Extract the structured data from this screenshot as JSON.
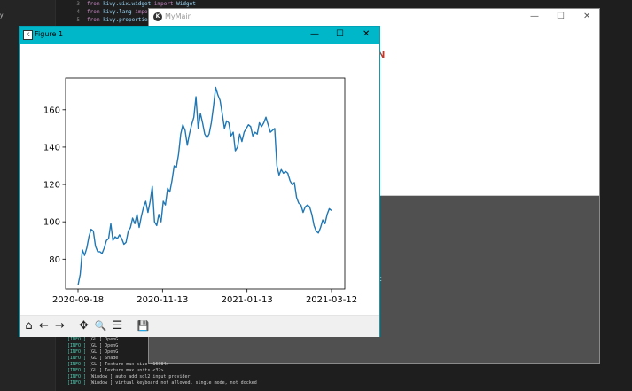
{
  "editor": {
    "explorer_label": "y",
    "code_lines": [
      {
        "num": "3",
        "kw": "from",
        "text": " kivy.uix.widget ",
        "kw2": "import",
        "text2": " Widget"
      },
      {
        "num": "4",
        "kw": "from",
        "text": " kivy.lang ",
        "kw2": "import",
        "text2": ""
      },
      {
        "num": "5",
        "kw": "from",
        "text": " kivy.propertie",
        "kw2": "",
        "text2": ""
      }
    ]
  },
  "mymain": {
    "title": "MyMain",
    "logo": "K",
    "minimize": "—",
    "maximize": "☐",
    "close": "✕",
    "red_mark": "N",
    "grey_label": "it"
  },
  "console": {
    "lines": [
      {
        "tag": "[INFO   ]",
        "src": "[GL          ]",
        "msg": "OpenG"
      },
      {
        "tag": "[INFO   ]",
        "src": "[GL          ]",
        "msg": "OpenG"
      },
      {
        "tag": "[INFO   ]",
        "src": "[GL          ]",
        "msg": "OpenG"
      },
      {
        "tag": "[INFO   ]",
        "src": "[GL          ]",
        "msg": "Shade"
      },
      {
        "tag": "[INFO   ]",
        "src": "[GL          ]",
        "msg": "Texture max size <16384>"
      },
      {
        "tag": "[INFO   ]",
        "src": "[GL          ]",
        "msg": "Texture max units <32>"
      },
      {
        "tag": "[INFO   ]",
        "src": "[Window      ]",
        "msg": "auto add sdl2 input provider"
      },
      {
        "tag": "[INFO   ]",
        "src": "[Window      ]",
        "msg": "virtual keyboard not allowed, single mode, not docked"
      }
    ]
  },
  "figure": {
    "title": "Figure 1",
    "app_icon": "K",
    "minimize": "—",
    "maximize": "☐",
    "close": "✕",
    "toolbar": {
      "home": "⌂",
      "back": "←",
      "forward": "→",
      "pan": "✥",
      "zoom": "🔍",
      "configure": "☰",
      "save": "💾"
    }
  },
  "chart_data": {
    "type": "line",
    "title": "",
    "xlabel": "",
    "ylabel": "",
    "x_tick_labels": [
      "2020-09-18",
      "2020-11-13",
      "2021-01-13",
      "2021-03-12"
    ],
    "y_ticks": [
      80,
      100,
      120,
      140,
      160
    ],
    "ylim": [
      64,
      177
    ],
    "line_color": "#1f77b4",
    "grid": false,
    "series": [
      {
        "values": [
          66,
          72,
          85,
          82,
          86,
          92,
          96,
          95,
          87,
          84,
          84,
          83,
          86,
          90,
          91,
          99,
          90,
          92,
          91,
          93,
          91,
          88,
          89,
          95,
          97,
          102,
          99,
          104,
          97,
          103,
          108,
          111,
          105,
          111,
          119,
          100,
          98,
          104,
          100,
          111,
          109,
          118,
          116,
          122,
          130,
          129,
          136,
          147,
          152,
          149,
          141,
          147,
          152,
          156,
          167,
          150,
          158,
          153,
          147,
          145,
          147,
          153,
          162,
          172,
          168,
          165,
          158,
          150,
          154,
          153,
          146,
          148,
          138,
          140,
          147,
          143,
          148,
          150,
          152,
          151,
          146,
          148,
          147,
          153,
          151,
          153,
          156,
          152,
          148,
          149,
          150,
          130,
          125,
          128,
          126,
          127,
          126,
          122,
          120,
          121,
          113,
          110,
          109,
          105,
          108,
          109,
          108,
          104,
          98,
          95,
          94,
          97,
          101,
          99,
          104,
          107,
          106
        ]
      }
    ]
  }
}
